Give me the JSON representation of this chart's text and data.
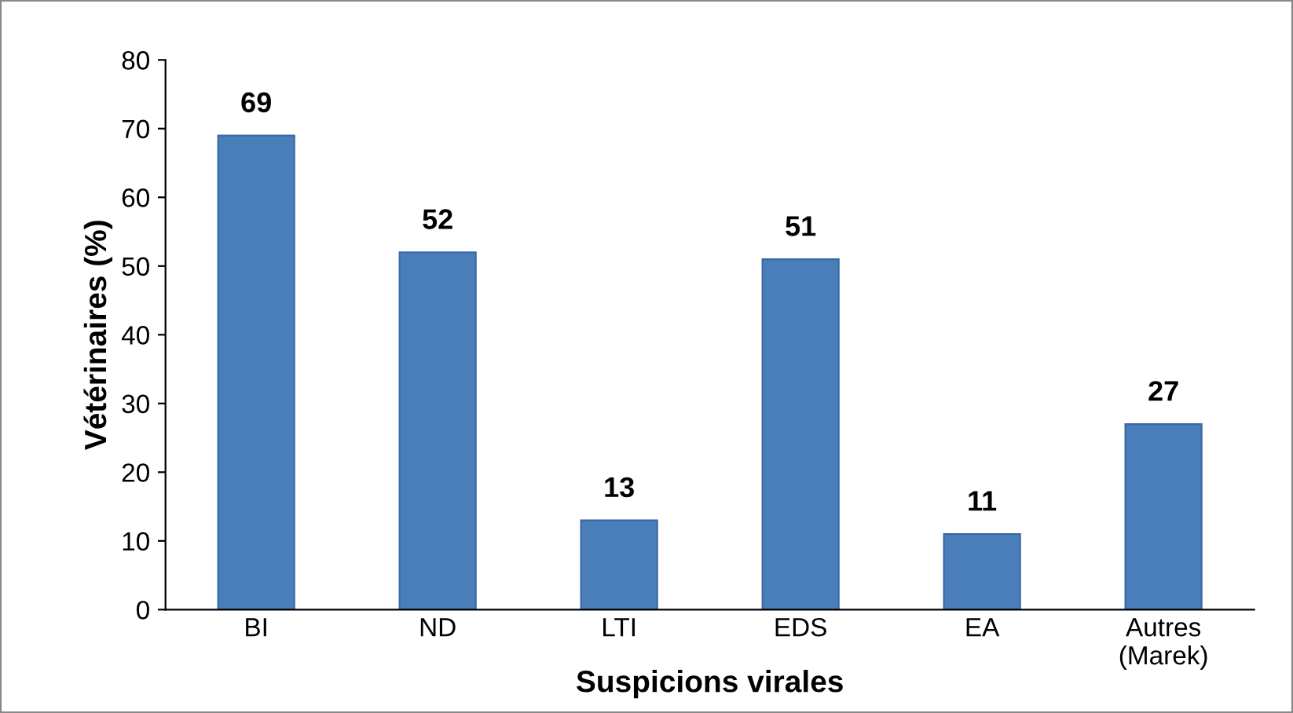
{
  "chart_data": {
    "type": "bar",
    "xlabel": "Suspicions virales",
    "ylabel": "Vétérinaires (%)",
    "categories": [
      "BI",
      "ND",
      "LTI",
      "EDS",
      "EA",
      "Autres\n(Marek)"
    ],
    "values": [
      69,
      52,
      13,
      51,
      11,
      27
    ],
    "color": "#4a7ebb",
    "ylim": [
      0,
      80
    ],
    "yticks": [
      0,
      10,
      20,
      30,
      40,
      50,
      60,
      70,
      80
    ],
    "grid": false,
    "data_labels": true
  }
}
